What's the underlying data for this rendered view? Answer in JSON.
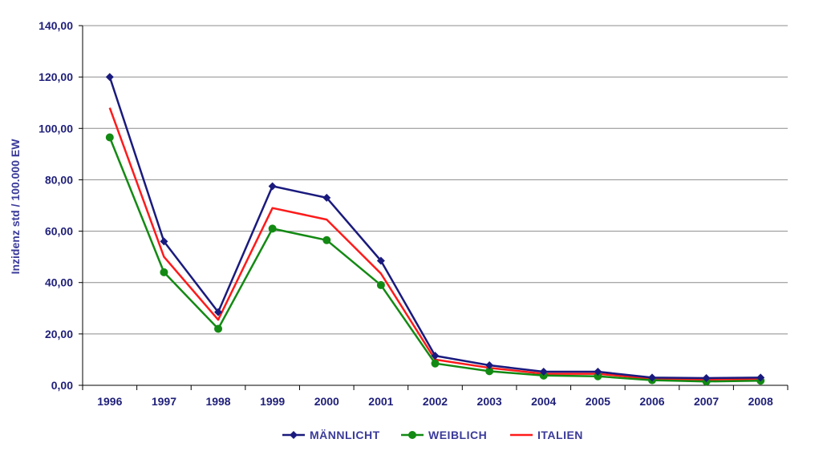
{
  "chart_data": {
    "type": "line",
    "title": "",
    "xlabel": "",
    "ylabel": "Inzidenz std / 100.000 EW",
    "ylim": [
      0,
      140
    ],
    "y_ticks": [
      "0,00",
      "20,00",
      "40,00",
      "60,00",
      "80,00",
      "100,00",
      "120,00",
      "140,00"
    ],
    "grid": true,
    "legend": "bottom",
    "categories": [
      "1996",
      "1997",
      "1998",
      "1999",
      "2000",
      "2001",
      "2002",
      "2003",
      "2004",
      "2005",
      "2006",
      "2007",
      "2008"
    ],
    "series": [
      {
        "name": "MÄNNLICHT",
        "marker": "diamond",
        "color": "#1a1a7e",
        "values": [
          120,
          56,
          28.5,
          77.5,
          73,
          48.5,
          11.5,
          7.8,
          5.3,
          5.3,
          3.0,
          2.8,
          3.0
        ]
      },
      {
        "name": "WEIBLICH",
        "marker": "circle",
        "color": "#138a13",
        "values": [
          96.5,
          44,
          22,
          61,
          56.5,
          39,
          8.5,
          5.5,
          3.8,
          3.5,
          2.0,
          1.5,
          1.8
        ]
      },
      {
        "name": "ITALIEN",
        "marker": "none",
        "color": "#ff1a1a",
        "values": [
          108,
          50,
          25.5,
          69,
          64.5,
          43.5,
          10,
          6.8,
          4.5,
          4.5,
          2.5,
          2.2,
          2.5
        ]
      }
    ]
  }
}
